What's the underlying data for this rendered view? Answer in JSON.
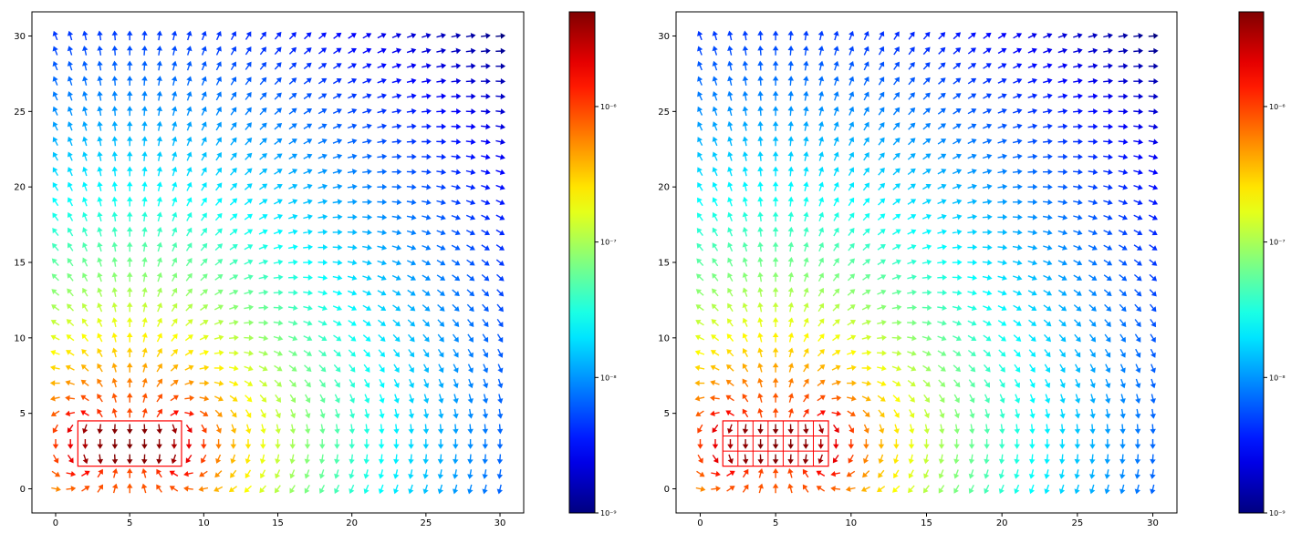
{
  "chart_data": [
    {
      "type": "quiver",
      "title": "",
      "xlabel": "",
      "ylabel": "",
      "xlim": [
        -1.6,
        31.6
      ],
      "ylim": [
        -1.6,
        31.6
      ],
      "x_ticks": [
        0,
        5,
        10,
        15,
        20,
        25,
        30
      ],
      "y_ticks": [
        0,
        5,
        10,
        15,
        20,
        25,
        30
      ],
      "grid": false,
      "field": {
        "x_range": [
          0,
          30
        ],
        "y_range": [
          0,
          30
        ],
        "step": 1,
        "direction": "normalized magnetic field of a rectangular bar magnet (length 7, height 3) magnetized in +y; colored by |B| on a log scale",
        "source_center": [
          5,
          3
        ],
        "source_size": [
          7,
          3
        ]
      },
      "source_rectangle": {
        "x": [
          1.5,
          8.5
        ],
        "y": [
          1.5,
          4.5
        ],
        "grid_divisions": [
          1,
          1
        ],
        "color": "#ff0000"
      },
      "colormap": "jet",
      "colorbar": {
        "scale": "log",
        "min": 1e-09,
        "max": 5e-06,
        "tick_values": [
          1e-09,
          1e-08,
          1e-07,
          1e-06
        ],
        "tick_labels": [
          "10⁻⁹",
          "10⁻⁸",
          "10⁻⁷",
          "10⁻⁶"
        ]
      }
    },
    {
      "type": "quiver",
      "title": "",
      "xlabel": "",
      "ylabel": "",
      "xlim": [
        -1.6,
        31.6
      ],
      "ylim": [
        -1.6,
        31.6
      ],
      "x_ticks": [
        0,
        5,
        10,
        15,
        20,
        25,
        30
      ],
      "y_ticks": [
        0,
        5,
        10,
        15,
        20,
        25,
        30
      ],
      "grid": false,
      "field": {
        "x_range": [
          0,
          30
        ],
        "y_range": [
          0,
          30
        ],
        "step": 1,
        "direction": "normalized magnetic field of a rectangular bar magnet (length 7, height 3) magnetized in +y; colored by |B| on a log scale",
        "source_center": [
          5,
          3
        ],
        "source_size": [
          7,
          3
        ]
      },
      "source_rectangle": {
        "x": [
          1.5,
          8.5
        ],
        "y": [
          1.5,
          4.5
        ],
        "grid_divisions": [
          7,
          3
        ],
        "color": "#ff0000"
      },
      "colormap": "jet",
      "colorbar": {
        "scale": "log",
        "min": 1e-09,
        "max": 5e-06,
        "tick_values": [
          1e-09,
          1e-08,
          1e-07,
          1e-06
        ],
        "tick_labels": [
          "10⁻⁹",
          "10⁻⁸",
          "10⁻⁷",
          "10⁻⁶"
        ]
      }
    }
  ]
}
